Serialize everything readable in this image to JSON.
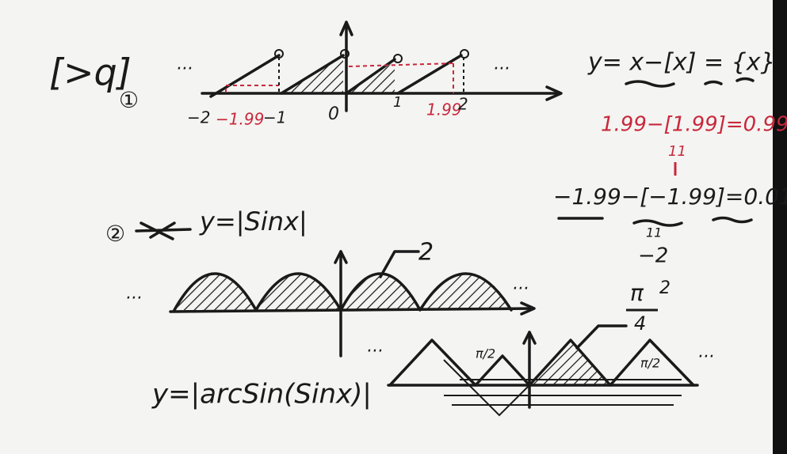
{
  "header": {
    "title": "[>q]"
  },
  "part1": {
    "number": "①",
    "left_dots": "···",
    "right_dots": "···",
    "tick_labels": [
      "−2",
      "−1.99",
      "−1",
      "0",
      "1",
      "1.99",
      "2"
    ],
    "formula": "y= x−[x] = {x}",
    "example1": "1.99−[1.99]=0.99",
    "example1_mark": "11",
    "example2": "−1.99−[−1.99]=0.01",
    "example2_mark": "11",
    "example2_note": "−2"
  },
  "part2": {
    "number": "②",
    "formula": "y=|Sinx|",
    "period_label": "2",
    "left_dots": "···",
    "right_dots": "···"
  },
  "part3": {
    "formula": "y=|arcSin(Sinx)|",
    "peak_label_top": "π",
    "peak_label_bottom": "4",
    "peak_exponent": "2",
    "half_pi_1": "π/2",
    "half_pi_2": "π/2",
    "left_dots": "···",
    "right_dots": "···"
  }
}
